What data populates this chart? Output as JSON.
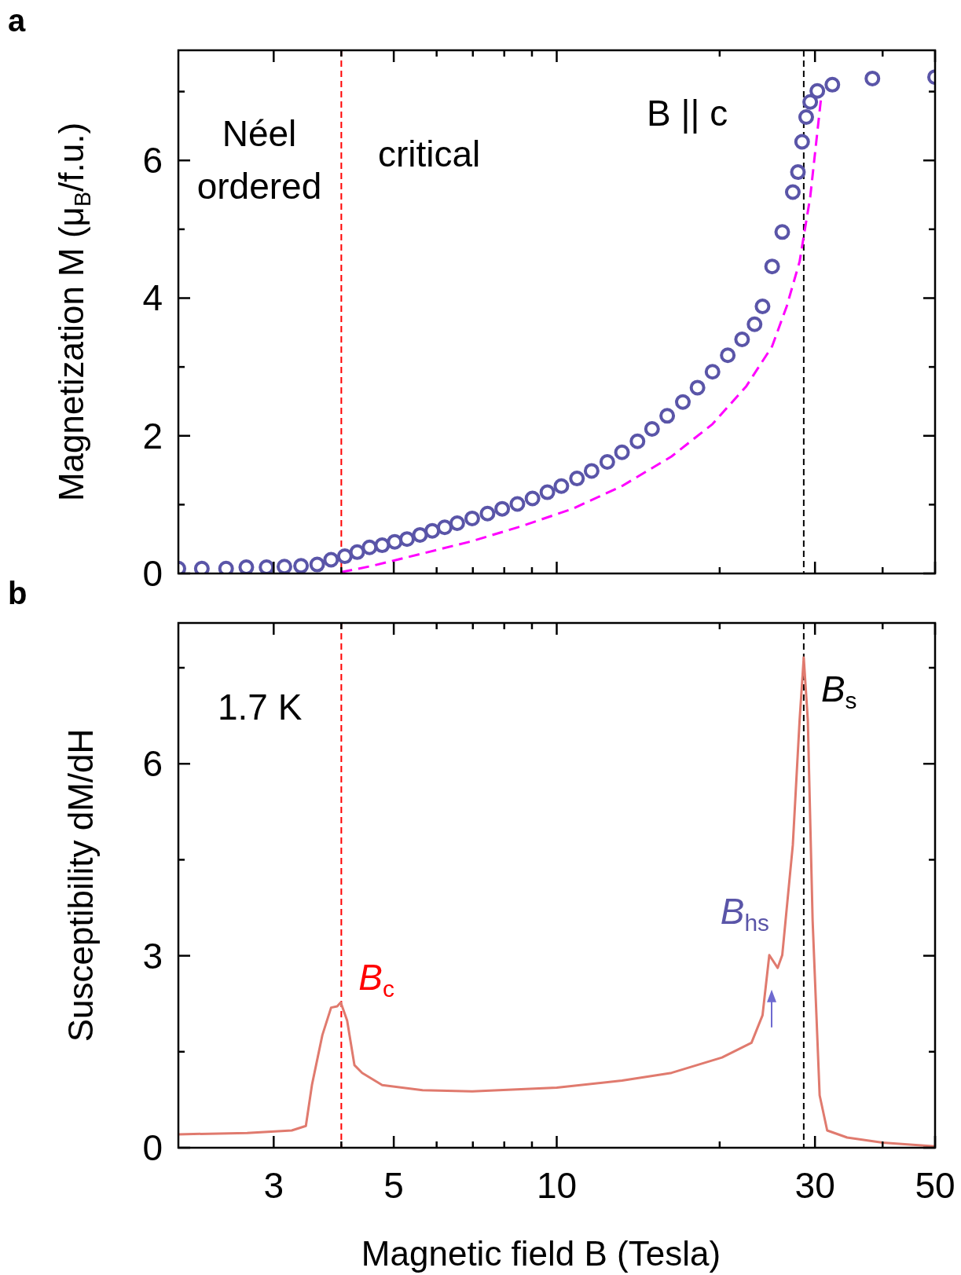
{
  "chart_data": [
    {
      "type": "scatter",
      "title": "a",
      "ylabel": "Magnetization M (μ$_{B}$/f.u.)",
      "log": "x",
      "xlim": [
        2,
        50
      ],
      "xticks": [
        3,
        {
          "value": 4,
          "label": null
        },
        5,
        {
          "value": 6,
          "label": null
        },
        {
          "value": 7,
          "label": null
        },
        {
          "value": 8,
          "label": null
        },
        {
          "value": 9,
          "label": null
        },
        10,
        {
          "value": 20,
          "label": null
        },
        30,
        {
          "value": 40,
          "label": null
        },
        50
      ],
      "ylim": [
        0,
        7.6
      ],
      "yticks": [
        0,
        {
          "value": 1,
          "label": null
        },
        2,
        {
          "value": 3,
          "label": null
        },
        4,
        {
          "value": 5,
          "label": null
        },
        6,
        {
          "value": 7,
          "label": null
        }
      ],
      "tick_labels": "y",
      "marker": "circle",
      "annotations": [
        "Néel\nordered",
        "critical",
        "B || c"
      ],
      "ref_lines": [
        {
          "axis": "x",
          "value": 4,
          "color": "#ff0000",
          "line_style": "dashed"
        },
        {
          "axis": "x",
          "value": 28.6,
          "color": "#000000",
          "line_style": "dashed"
        }
      ],
      "series": [
        {
          "color": "#5a55a8",
          "x": [
            2.0,
            2.21,
            2.45,
            2.67,
            2.91,
            3.14,
            3.37,
            3.61,
            3.83,
            4.06,
            4.28,
            4.51,
            4.76,
            5.02,
            5.29,
            5.59,
            5.89,
            6.21,
            6.55,
            6.98,
            7.45,
            7.93,
            8.46,
            9.02,
            9.61,
            10.2,
            10.9,
            11.6,
            12.4,
            13.2,
            14.1,
            15.0,
            16.0,
            17.1,
            18.2,
            19.4,
            20.7,
            22.0,
            23.2,
            24.0,
            25.0,
            26.1,
            27.3,
            27.9,
            28.4,
            28.9,
            29.4,
            30.3,
            32.3,
            38.3,
            50
          ],
          "values": [
            0.07,
            0.07,
            0.07,
            0.09,
            0.09,
            0.1,
            0.11,
            0.13,
            0.2,
            0.25,
            0.31,
            0.38,
            0.41,
            0.46,
            0.5,
            0.56,
            0.62,
            0.67,
            0.73,
            0.8,
            0.87,
            0.94,
            1.01,
            1.09,
            1.18,
            1.27,
            1.38,
            1.49,
            1.62,
            1.76,
            1.92,
            2.1,
            2.29,
            2.49,
            2.7,
            2.93,
            3.17,
            3.4,
            3.62,
            3.88,
            4.46,
            4.96,
            5.54,
            5.83,
            6.27,
            6.63,
            6.85,
            7.01,
            7.1,
            7.19,
            7.21
          ]
        },
        {
          "type": "line",
          "color": "#ff00ff",
          "line_style": "dashed",
          "marker": "none",
          "x": [
            4.0,
            4.56,
            5.65,
            6.98,
            8.63,
            10.7,
            13.2,
            16.3,
            19.4,
            22.4,
            25.0,
            26.6,
            28.1,
            29.4,
            30.3,
            30.8
          ],
          "values": [
            0.02,
            0.11,
            0.29,
            0.47,
            0.69,
            0.94,
            1.27,
            1.7,
            2.17,
            2.72,
            3.3,
            3.88,
            4.53,
            5.47,
            6.41,
            6.92
          ]
        }
      ]
    },
    {
      "type": "line",
      "title": "b",
      "xlabel": "Magnetic field B (Tesla)",
      "ylabel": "Susceptibility dM/dH",
      "log": "x",
      "xlim": [
        2,
        50
      ],
      "xticks": [
        3,
        {
          "value": 4,
          "label": null
        },
        5,
        {
          "value": 6,
          "label": null
        },
        {
          "value": 7,
          "label": null
        },
        {
          "value": 8,
          "label": null
        },
        {
          "value": 9,
          "label": null
        },
        10,
        {
          "value": 20,
          "label": null
        },
        30,
        {
          "value": 40,
          "label": null
        },
        50
      ],
      "ylim": [
        0,
        8.2
      ],
      "yticks": [
        0,
        {
          "value": 1.5,
          "label": null
        },
        3,
        {
          "value": 4.5,
          "label": null
        },
        6,
        {
          "value": 7.5,
          "label": null
        }
      ],
      "marker": "none",
      "annotations": [
        "1.7 K",
        {
          "text": "B$_{hs}$",
          "x": 24.7,
          "y": 3.01
        }
      ],
      "ref_lines": [
        {
          "axis": "x",
          "value": 4,
          "label": "B$_{c}$",
          "color": "#ff0000",
          "line_style": "dashed"
        },
        {
          "axis": "x",
          "value": 28.6,
          "label": "B$_{s}$",
          "color": "#000000",
          "line_style": "dashed"
        }
      ],
      "series": [
        {
          "color": "#e07a6e",
          "x": [
            2.0,
            2.68,
            3.24,
            3.44,
            3.53,
            3.69,
            3.83,
            3.93,
            3.99,
            4.1,
            4.23,
            4.37,
            4.76,
            5.65,
            6.98,
            10,
            13.2,
            16.3,
            20.2,
            22.9,
            24.0,
            24.7,
            25.6,
            26.1,
            27.3,
            28.1,
            28.6,
            29.1,
            29.7,
            30.6,
            31.6,
            34.4,
            40.0,
            50
          ],
          "values": [
            0.21,
            0.23,
            0.27,
            0.34,
            0.98,
            1.76,
            2.19,
            2.21,
            2.27,
            1.99,
            1.29,
            1.17,
            0.98,
            0.9,
            0.88,
            0.94,
            1.05,
            1.17,
            1.41,
            1.64,
            2.07,
            3.01,
            2.81,
            3.01,
            4.73,
            6.68,
            7.66,
            6.68,
            3.55,
            0.82,
            0.27,
            0.16,
            0.08,
            0.02
          ]
        }
      ]
    }
  ]
}
